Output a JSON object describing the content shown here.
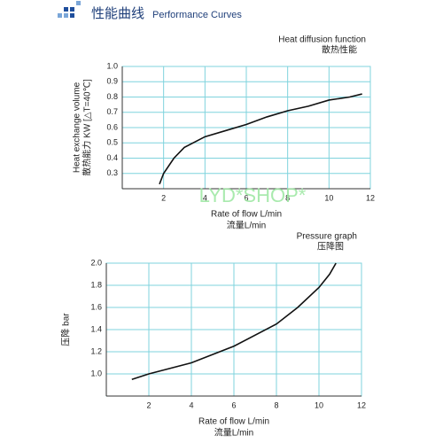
{
  "header": {
    "title": "性能曲线",
    "subtitle": "Performance Curves"
  },
  "watermark": "LYD*SHOP*",
  "chart_data": [
    {
      "type": "line",
      "title": "Heat diffusion function",
      "subtitle": "散热性能",
      "y_label": [
        "Heat exchange volume",
        "散热能力 KW [△T=40℃]"
      ],
      "x_label": [
        "Rate of flow L/min",
        "流量L/min"
      ],
      "x": [
        1.8,
        2,
        2.5,
        3,
        4,
        5,
        6,
        7,
        8,
        9,
        10,
        11,
        11.6
      ],
      "values": [
        0.23,
        0.3,
        0.4,
        0.47,
        0.54,
        0.58,
        0.62,
        0.67,
        0.71,
        0.74,
        0.78,
        0.8,
        0.82
      ],
      "color": "#111111",
      "xlim": [
        0,
        12
      ],
      "xticks": [
        2,
        4,
        6,
        8,
        10,
        12
      ],
      "ylim": [
        0.2,
        1.0
      ],
      "yticks": [
        0.3,
        0.4,
        0.5,
        0.6,
        0.7,
        0.8,
        0.9,
        {
          "value": 1.0,
          "label": "1.0"
        }
      ],
      "grid": true
    },
    {
      "type": "line",
      "title": "Pressure graph",
      "subtitle": "压降图",
      "y_label": [
        "压降 bar"
      ],
      "x_label": [
        "Rate of flow L/min",
        "流量L/min"
      ],
      "x": [
        1.2,
        2,
        4,
        6,
        8,
        9,
        10,
        10.5,
        10.8
      ],
      "values": [
        0.95,
        1.0,
        1.1,
        1.25,
        1.45,
        1.6,
        1.78,
        1.9,
        2.0
      ],
      "color": "#111111",
      "xlim": [
        0,
        12
      ],
      "xticks": [
        2,
        4,
        6,
        8,
        10,
        12
      ],
      "ylim": [
        0.8,
        2.0
      ],
      "yticks": [
        {
          "value": 1.0,
          "label": "1.0"
        },
        1.2,
        1.4,
        1.6,
        1.8,
        {
          "value": 2.0,
          "label": "2.0"
        }
      ],
      "grid": true
    }
  ]
}
